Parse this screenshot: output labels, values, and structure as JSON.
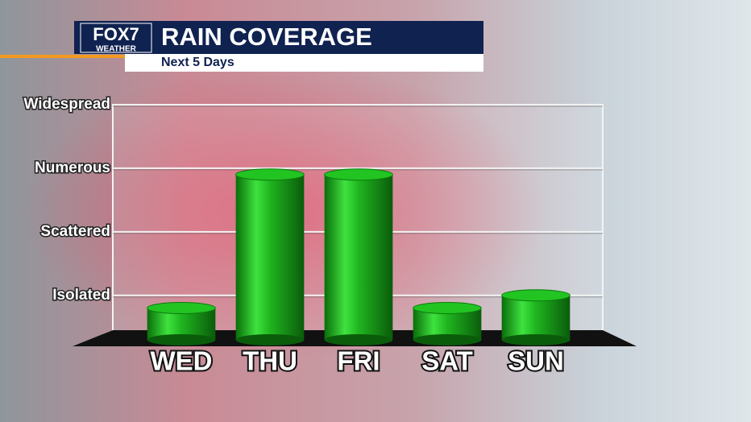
{
  "chart_data": {
    "type": "bar",
    "logo_text": "FOX7",
    "logo_subtext": "WEATHER",
    "title": "RAIN COVERAGE",
    "subtitle": "Next 5 Days",
    "categories": [
      "WED",
      "THU",
      "FRI",
      "SAT",
      "SUN"
    ],
    "values": [
      0.8,
      2.9,
      2.9,
      0.8,
      1.0
    ],
    "color": "#1fb51f",
    "ylim": [
      0.3,
      4
    ],
    "yticks": [
      {
        "value": 1,
        "label": "Isolated"
      },
      {
        "value": 2,
        "label": "Scattered"
      },
      {
        "value": 3,
        "label": "Numerous"
      },
      {
        "value": 4,
        "label": "Widespread"
      }
    ],
    "grid": true
  }
}
